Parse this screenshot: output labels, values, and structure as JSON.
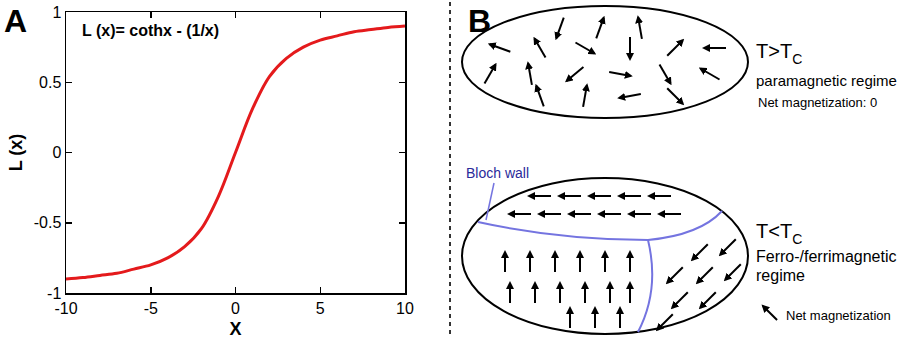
{
  "chart_data": {
    "type": "line",
    "panel": "A",
    "annotation": "L (x)= cothx - (1/x)",
    "x_label": "X",
    "y_label": "L (x)",
    "x": [
      -10,
      -9,
      -8,
      -7,
      -6,
      -5,
      -4,
      -3,
      -2,
      -1,
      0,
      1,
      2,
      3,
      4,
      5,
      6,
      7,
      8,
      9,
      10
    ],
    "values": [
      -0.9,
      -0.89,
      -0.875,
      -0.86,
      -0.83,
      -0.8,
      -0.75,
      -0.67,
      -0.54,
      -0.31,
      0,
      0.31,
      0.54,
      0.67,
      0.75,
      0.8,
      0.83,
      0.86,
      0.875,
      0.89,
      0.9
    ],
    "color": "#e41a1c",
    "xlim": [
      -10,
      10
    ],
    "xticks": [
      -10,
      -5,
      0,
      5,
      10
    ],
    "ylim": [
      -1,
      1
    ],
    "yticks": [
      -1,
      -0.5,
      0,
      0.5,
      1
    ],
    "grid": false
  },
  "diagram": {
    "panel": "B",
    "above_tc": {
      "condition": {
        "text": "T>T",
        "sub": "C"
      },
      "regime": "paramagnetic regime",
      "note": "Net magnetization: 0"
    },
    "below_tc": {
      "condition": {
        "text": "T<T",
        "sub": "C"
      },
      "regime": "Ferro-/ferrimagnetic regime",
      "legend": "Net magnetization",
      "wall_label": "Bloch wall"
    }
  }
}
